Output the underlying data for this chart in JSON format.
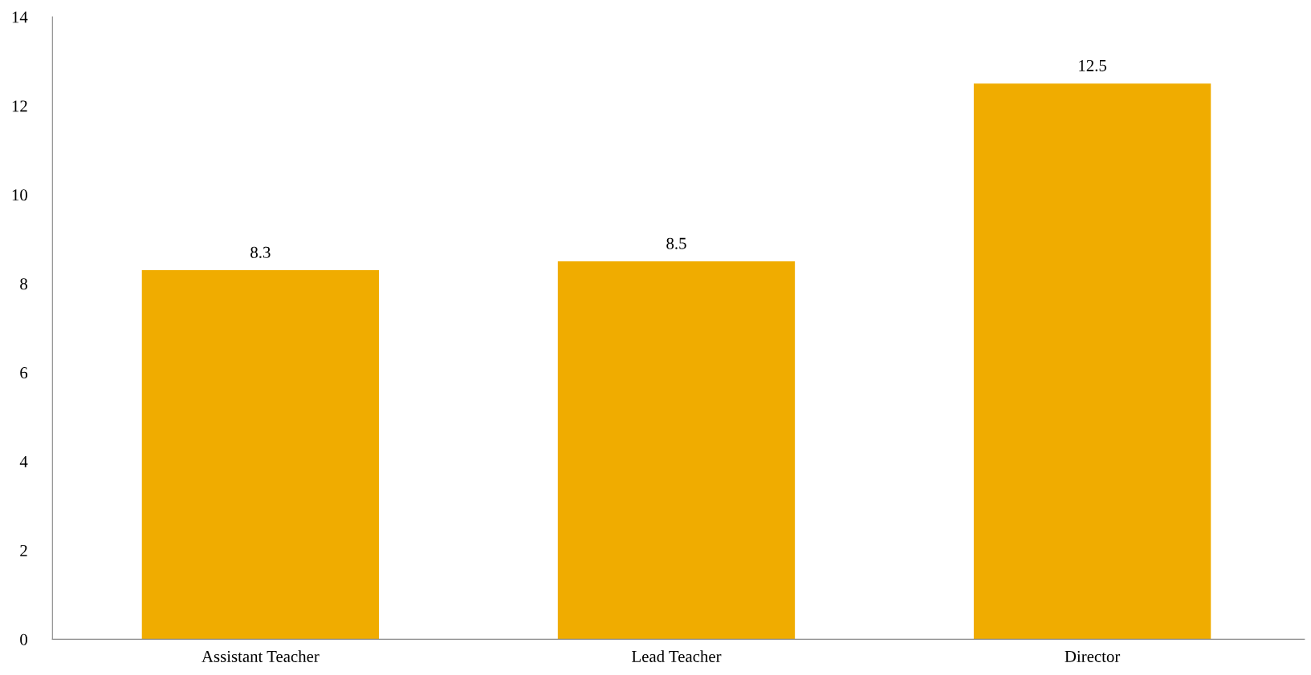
{
  "chart_data": {
    "type": "bar",
    "categories": [
      "Assistant Teacher",
      "Lead Teacher",
      "Director"
    ],
    "values": [
      8.3,
      8.5,
      12.5
    ],
    "color": "#f0ac00",
    "ylim": [
      0,
      14
    ],
    "yticks": [
      0,
      2,
      4,
      6,
      8,
      10,
      12,
      14
    ],
    "data_labels": true,
    "grid": false,
    "legend": false
  }
}
